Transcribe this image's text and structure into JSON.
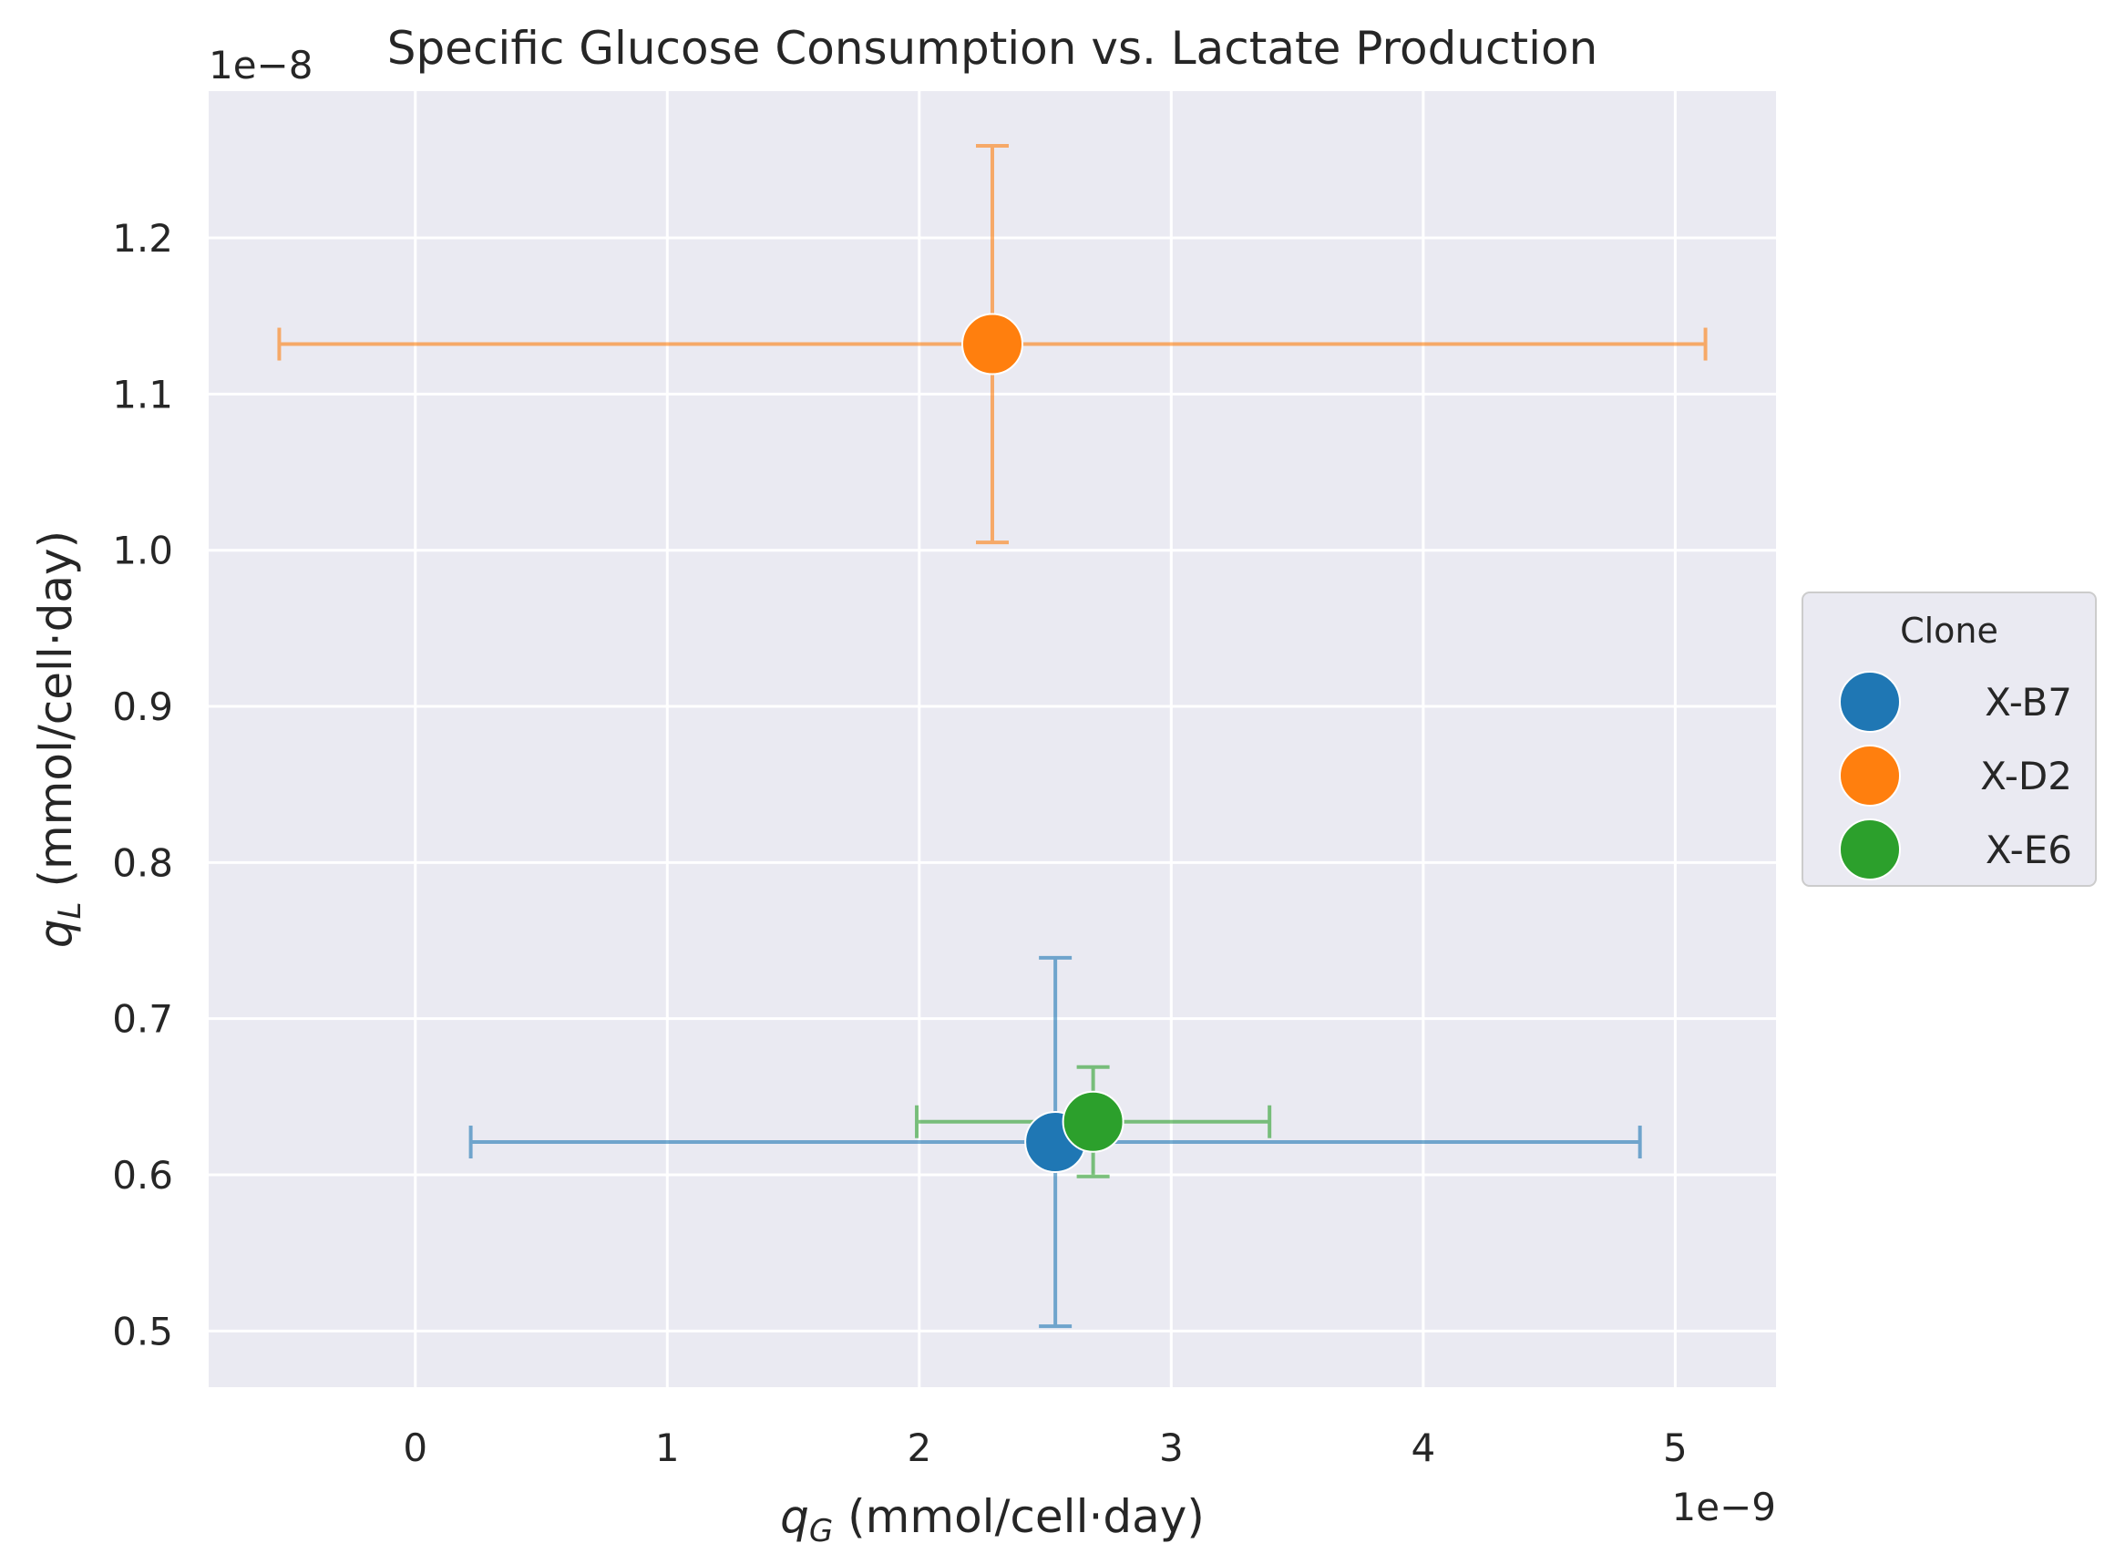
{
  "chart_data": {
    "type": "scatter",
    "title": "Specific Glucose Consumption vs. Lactate Production",
    "xlabel_var": "q",
    "xlabel_sub": "G",
    "xlabel_unit": " (mmol/cell·day)",
    "ylabel_var": "q",
    "ylabel_sub": "L",
    "ylabel_unit": " (mmol/cell·day)",
    "x_offset_label": "1e−9",
    "y_offset_label": "1e−8",
    "x_scale": 1e-09,
    "y_scale": 1e-08,
    "xlim": [
      -0.82,
      5.4
    ],
    "ylim": [
      0.464,
      1.294
    ],
    "x_ticks": [
      0,
      1,
      2,
      3,
      4,
      5
    ],
    "x_tick_labels": [
      "0",
      "1",
      "2",
      "3",
      "4",
      "5"
    ],
    "y_ticks": [
      0.5,
      0.6,
      0.7,
      0.8,
      0.9,
      1.0,
      1.1,
      1.2
    ],
    "y_tick_labels": [
      "0.5",
      "0.6",
      "0.7",
      "0.8",
      "0.9",
      "1.0",
      "1.1",
      "1.2"
    ],
    "grid": true,
    "legend": {
      "title": "Clone",
      "placement": "center-right-outside"
    },
    "series": [
      {
        "name": "X-B7",
        "color": "#1f77b4",
        "x": 2.54,
        "y": 0.621,
        "x_err": 2.32,
        "y_err": 0.118
      },
      {
        "name": "X-D2",
        "color": "#ff7f0e",
        "x": 2.29,
        "y": 1.132,
        "x_err": 2.83,
        "y_err": 0.127
      },
      {
        "name": "X-E6",
        "color": "#2ca02c",
        "x": 2.69,
        "y": 0.634,
        "x_err": 0.7,
        "y_err": 0.035
      }
    ]
  }
}
